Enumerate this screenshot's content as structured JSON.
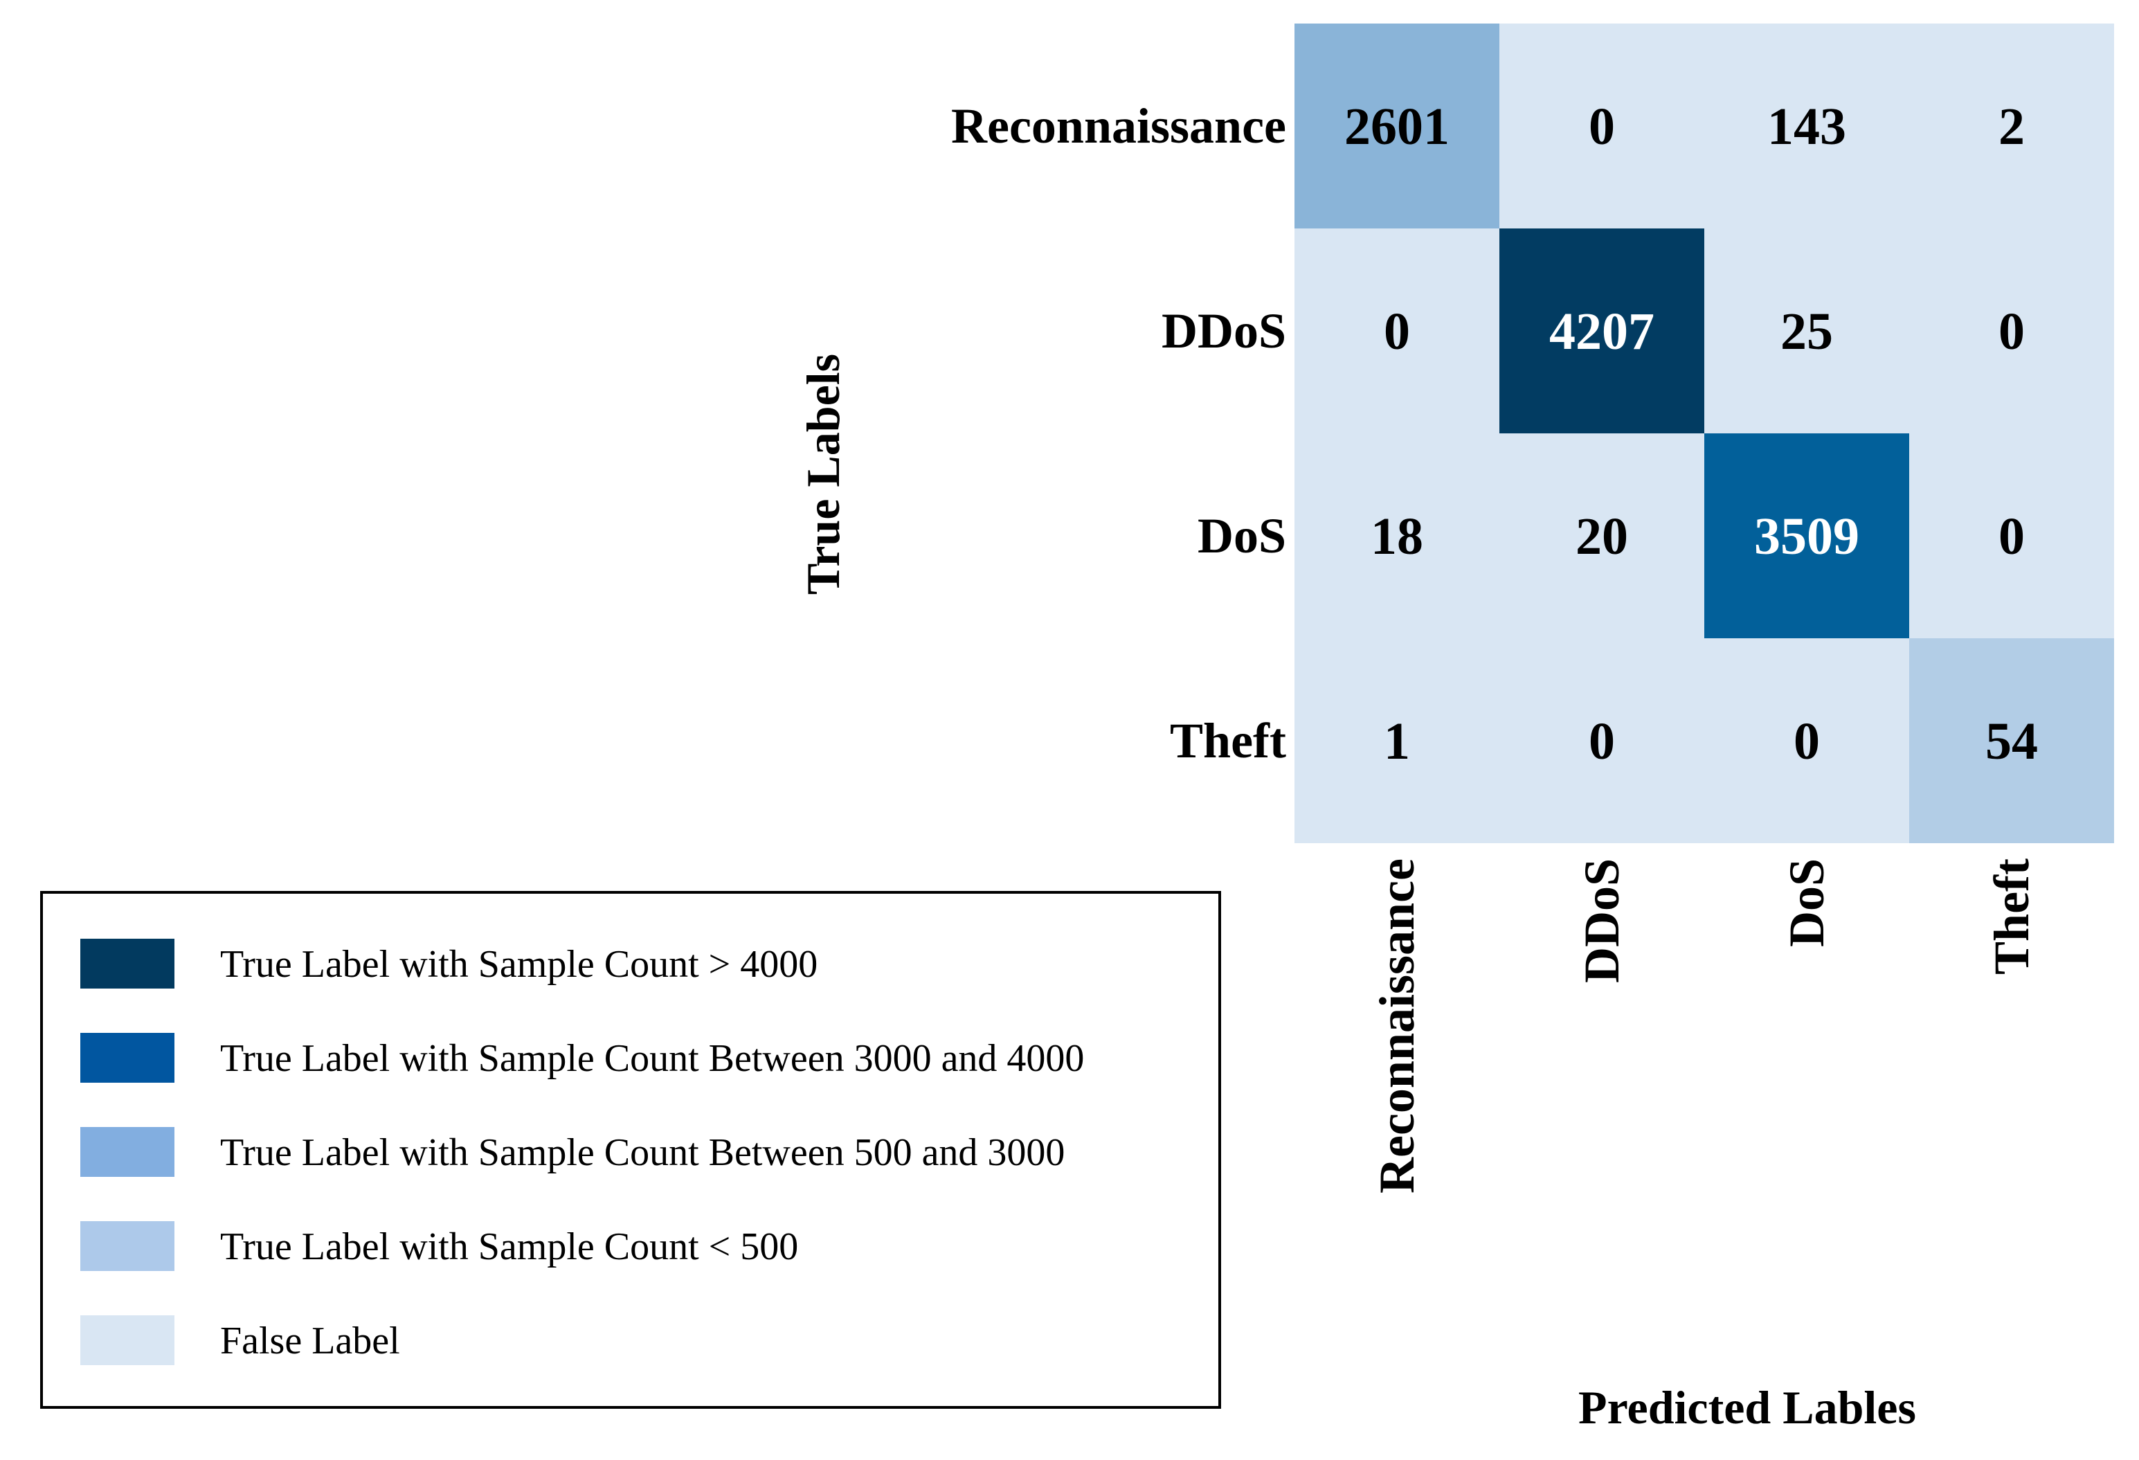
{
  "chart_data": {
    "type": "heatmap",
    "rows": [
      "Reconnaissance",
      "DDoS",
      "DoS",
      "Theft"
    ],
    "columns": [
      "Reconnaissance",
      "DDoS",
      "DoS",
      "Theft"
    ],
    "values": [
      [
        2601,
        0,
        143,
        2
      ],
      [
        0,
        4207,
        25,
        0
      ],
      [
        18,
        20,
        3509,
        0
      ],
      [
        1,
        0,
        0,
        54
      ]
    ],
    "ylabel": "True Labels",
    "xlabel": "Predicted Lables",
    "legend": {
      "placement": "bottom-left",
      "entries": [
        {
          "label": "True Label with Sample Count > 4000",
          "color": "#023a5f"
        },
        {
          "label": "True Label with Sample Count Between 3000 and 4000",
          "color": "#0156a0"
        },
        {
          "label": "True Label with Sample Count Between 500 and 3000",
          "color": "#82aee0"
        },
        {
          "label": "True Label with Sample Count < 500",
          "color": "#adc9ea"
        },
        {
          "label": "False Label",
          "color": "#d9e6f3"
        }
      ]
    },
    "cell_colors": {
      "above_4000": "#023c62",
      "between_3000_4000": "#02609a",
      "between_500_3000": "#8ab4d8",
      "below_500": "#b2cde6",
      "false_label": "#d9e6f3"
    },
    "text_colors": {
      "dark_cell": "#ffffff",
      "light_cell": "#000000"
    }
  }
}
